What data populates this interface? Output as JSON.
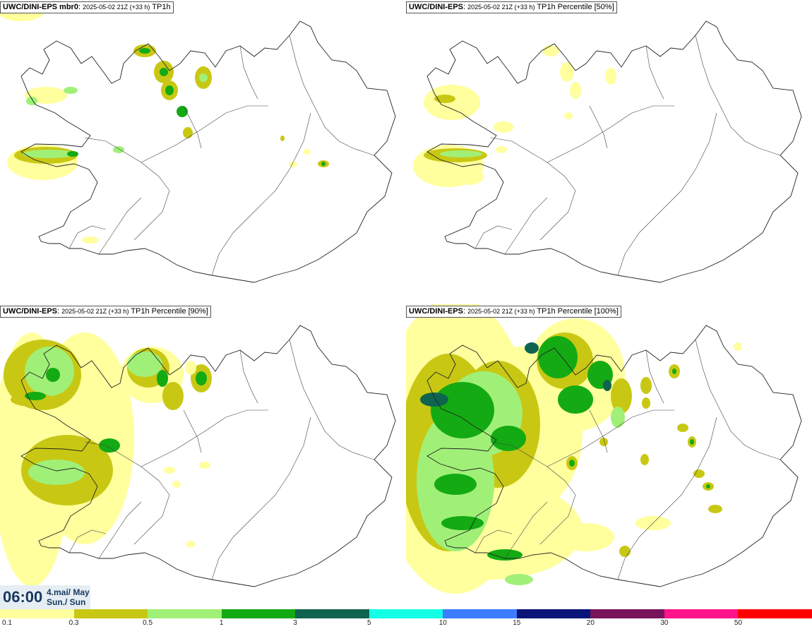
{
  "panels": [
    {
      "model": "UWC/DINI-EPS mbr0",
      "run": "2025-05-02 21Z (+33 h)",
      "field": "TP1h"
    },
    {
      "model": "UWC/DINI-EPS",
      "run": "2025-05-02 21Z (+33 h)",
      "field": "TP1h Percentile [50%]"
    },
    {
      "model": "UWC/DINI-EPS",
      "run": "2025-05-02 21Z (+33 h)",
      "field": "TP1h Percentile [90%]"
    },
    {
      "model": "UWC/DINI-EPS",
      "run": "2025-05-02 21Z (+33 h)",
      "field": "TP1h Percentile [100%]"
    }
  ],
  "valid_time": {
    "hour": "06:00",
    "date_line1": "4.maí/ May",
    "date_line2": "Sun./ Sun"
  },
  "legend": {
    "labels": [
      "0.1",
      "0.3",
      "0.5",
      "1",
      "3",
      "5",
      "10",
      "15",
      "20",
      "30",
      "50"
    ],
    "colors": [
      "#ffff9e",
      "#c8c814",
      "#a0f078",
      "#14aa14",
      "#0f6450",
      "#14ffe6",
      "#3c7dff",
      "#0a1478",
      "#78145a",
      "#ff148c",
      "#ff0000"
    ]
  },
  "precip_colors": {
    "light": "#ffff9e",
    "olive": "#c8c814",
    "lightgreen": "#a0f078",
    "green": "#14aa14",
    "darkgreen": "#0f6450"
  }
}
